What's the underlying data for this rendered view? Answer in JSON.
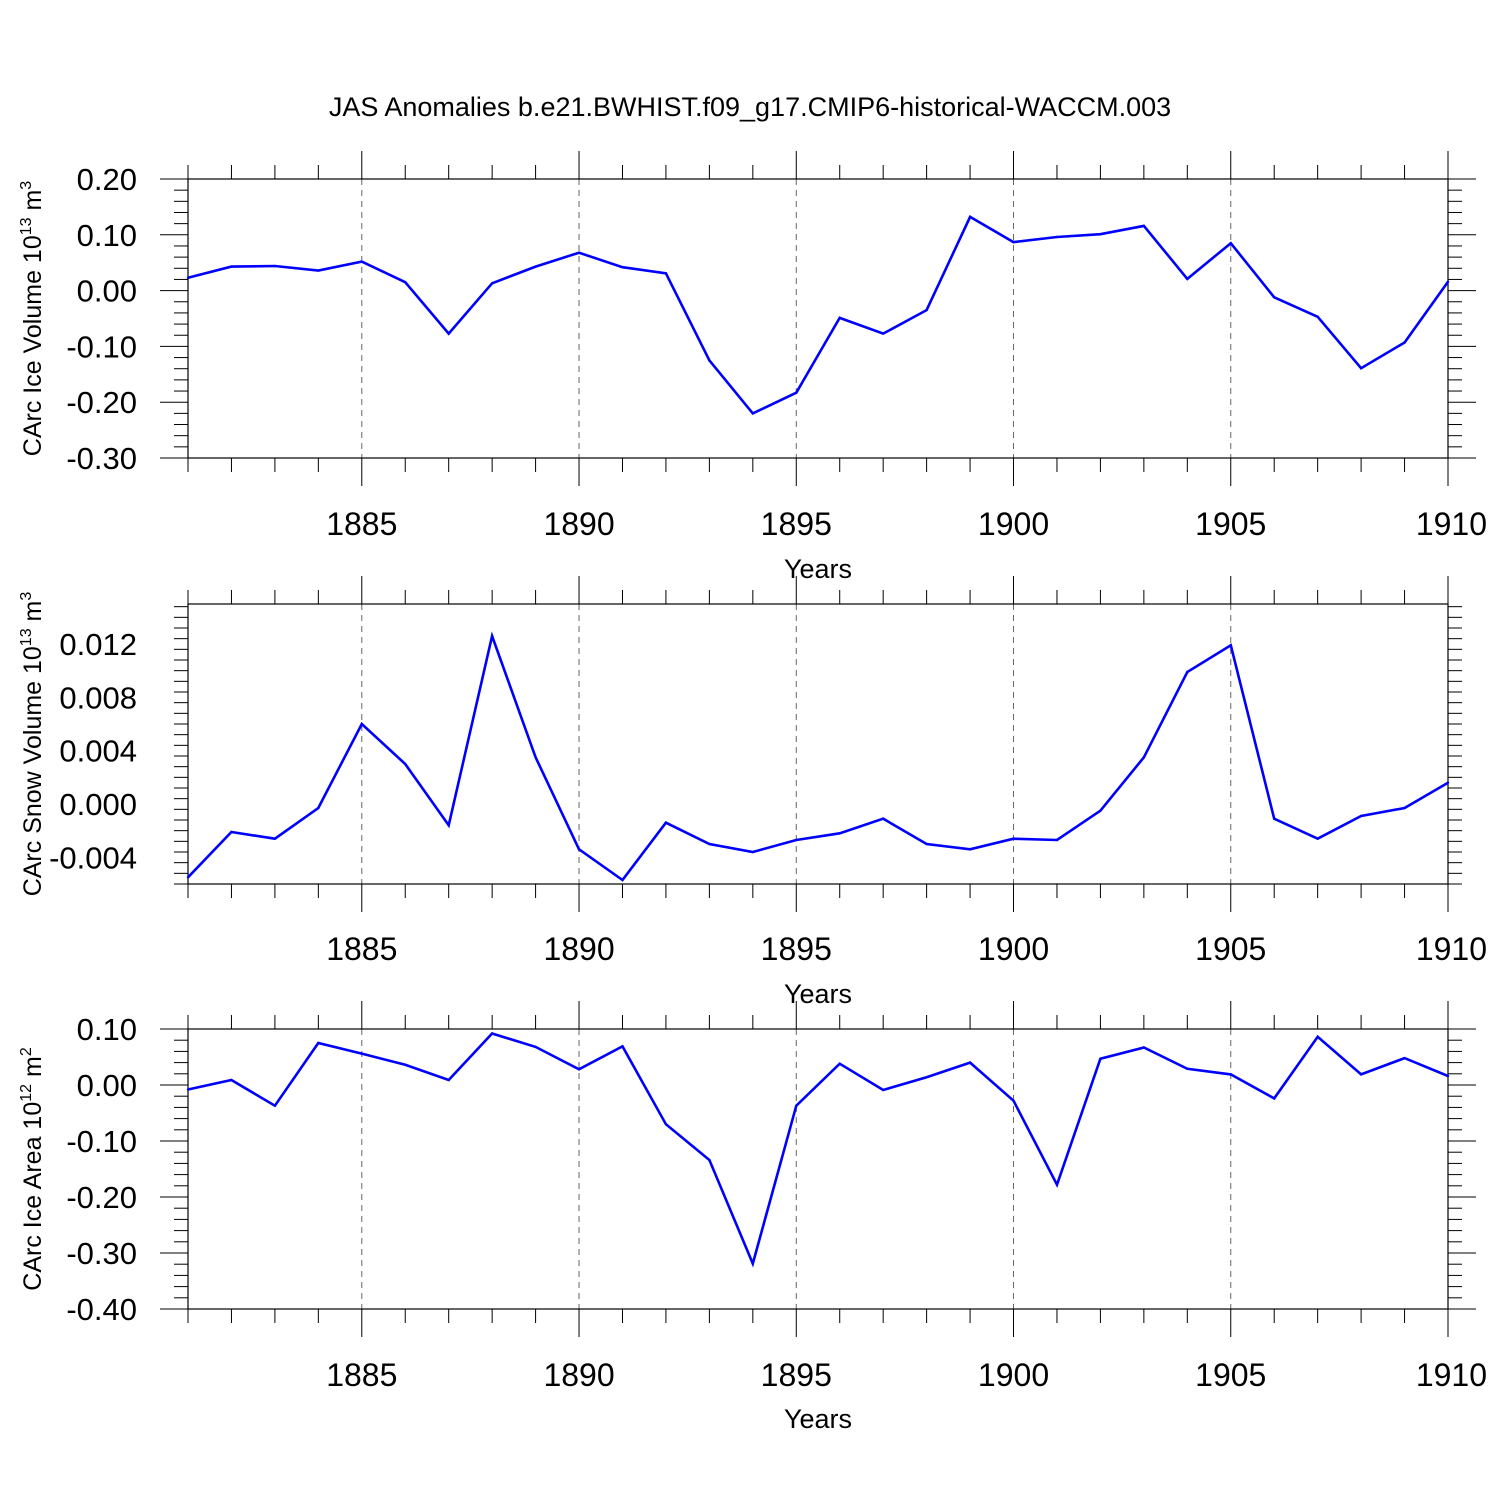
{
  "title": "JAS Anomalies b.e21.BWHIST.f09_g17.CMIP6-historical-WACCM.003",
  "chart_data": [
    {
      "type": "line",
      "id": "ice-volume",
      "xlabel": "Years",
      "ylabel_main": "CArc Ice Volume 10",
      "ylabel_sup1": "13",
      "ylabel_mid": " m",
      "ylabel_sup2": "3",
      "xlim": [
        1881,
        1910
      ],
      "ylim": [
        -0.3,
        0.2
      ],
      "xticks": [
        "1885",
        "1890",
        "1895",
        "1900",
        "1905",
        "1910"
      ],
      "yticks": [
        "0.20",
        "0.10",
        "0.00",
        "-0.10",
        "-0.20",
        "-0.30"
      ],
      "grid": "vertical dashed at major x ticks",
      "color": "#0000ff",
      "x": [
        1881,
        1882,
        1883,
        1884,
        1885,
        1886,
        1887,
        1888,
        1889,
        1890,
        1891,
        1892,
        1893,
        1894,
        1895,
        1896,
        1897,
        1898,
        1899,
        1900,
        1901,
        1902,
        1903,
        1904,
        1905,
        1906,
        1907,
        1908,
        1909,
        1910
      ],
      "y": [
        0.023,
        0.043,
        0.044,
        0.036,
        0.052,
        0.015,
        -0.077,
        0.013,
        0.043,
        0.068,
        0.042,
        0.031,
        -0.125,
        -0.22,
        -0.183,
        -0.049,
        -0.077,
        -0.035,
        0.132,
        0.087,
        0.096,
        0.101,
        0.116,
        0.021,
        0.085,
        -0.012,
        -0.047,
        -0.139,
        -0.093,
        0.016
      ]
    },
    {
      "type": "line",
      "id": "snow-volume",
      "xlabel": "Years",
      "ylabel_main": "CArc Snow Volume 10",
      "ylabel_sup1": "13",
      "ylabel_mid": " m",
      "ylabel_sup2": "3",
      "xlim": [
        1881,
        1910
      ],
      "ylim": [
        -0.006,
        0.015
      ],
      "xticks": [
        "1885",
        "1890",
        "1895",
        "1900",
        "1905",
        "1910"
      ],
      "yticks": [
        "0.012",
        "0.008",
        "0.004",
        "0.000",
        "-0.004"
      ],
      "grid": "vertical dashed at major x ticks",
      "color": "#0000ff",
      "x": [
        1881,
        1882,
        1883,
        1884,
        1885,
        1886,
        1887,
        1888,
        1889,
        1890,
        1891,
        1892,
        1893,
        1894,
        1895,
        1896,
        1897,
        1898,
        1899,
        1900,
        1901,
        1902,
        1903,
        1904,
        1905,
        1906,
        1907,
        1908,
        1909,
        1910
      ],
      "y": [
        -0.0055,
        -0.0021,
        -0.0026,
        -0.0003,
        0.006,
        0.003,
        -0.0016,
        0.0126,
        0.0035,
        -0.0034,
        -0.0057,
        -0.0014,
        -0.003,
        -0.0036,
        -0.0027,
        -0.0022,
        -0.0011,
        -0.003,
        -0.0034,
        -0.0026,
        -0.0027,
        -0.0005,
        0.0035,
        0.0099,
        0.0119,
        -0.0011,
        -0.0026,
        -0.0009,
        -0.0003,
        0.0016
      ]
    },
    {
      "type": "line",
      "id": "ice-area",
      "xlabel": "Years",
      "ylabel_main": "CArc Ice Area 10",
      "ylabel_sup1": "12",
      "ylabel_mid": " m",
      "ylabel_sup2": "2",
      "xlim": [
        1881,
        1910
      ],
      "ylim": [
        -0.4,
        0.1
      ],
      "xticks": [
        "1885",
        "1890",
        "1895",
        "1900",
        "1905",
        "1910"
      ],
      "yticks": [
        "0.10",
        "0.00",
        "-0.10",
        "-0.20",
        "-0.30",
        "-0.40"
      ],
      "grid": "vertical dashed at major x ticks",
      "color": "#0000ff",
      "x": [
        1881,
        1882,
        1883,
        1884,
        1885,
        1886,
        1887,
        1888,
        1889,
        1890,
        1891,
        1892,
        1893,
        1894,
        1895,
        1896,
        1897,
        1898,
        1899,
        1900,
        1901,
        1902,
        1903,
        1904,
        1905,
        1906,
        1907,
        1908,
        1909,
        1910
      ],
      "y": [
        -0.008,
        0.009,
        -0.037,
        0.075,
        0.056,
        0.036,
        0.009,
        0.092,
        0.068,
        0.028,
        0.069,
        -0.07,
        -0.134,
        -0.319,
        -0.037,
        0.038,
        -0.009,
        0.014,
        0.04,
        -0.028,
        -0.178,
        0.047,
        0.067,
        0.029,
        0.019,
        -0.024,
        0.086,
        0.019,
        0.048,
        0.016
      ]
    }
  ]
}
